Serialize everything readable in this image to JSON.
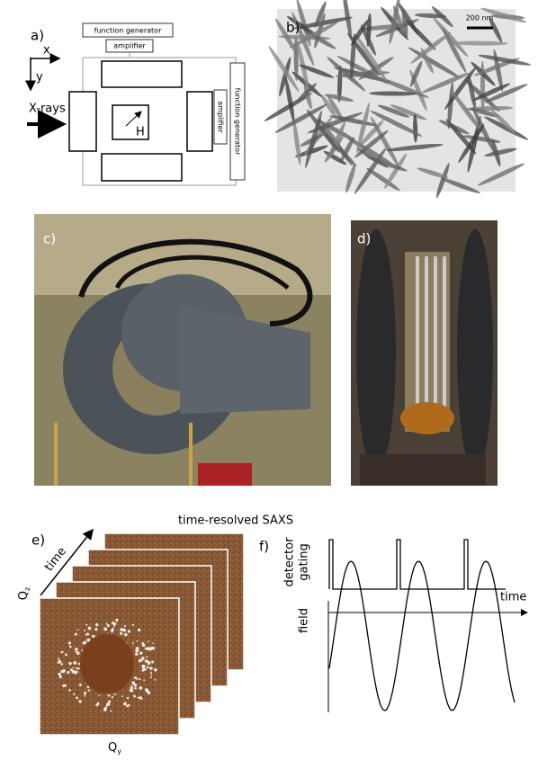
{
  "panel_a": {
    "label": "a)",
    "function_generator_top": "function generator",
    "amplifier_top": "amplifier",
    "axis_x": "x",
    "axis_y": "y",
    "beam": "X-rays",
    "field": "H",
    "amplifier_right": "amplifier",
    "function_generator_right": "function generator"
  },
  "panel_b": {
    "label": "b)",
    "scale_bar": "200 nm"
  },
  "panel_c": {
    "label": "c)"
  },
  "panel_d": {
    "label": "d)"
  },
  "panel_e": {
    "label": "e)",
    "title": "time-resolved SAXS",
    "arrow_label": "time",
    "vertical_axis": {
      "symbol": "Q",
      "subscript": "z"
    },
    "horizontal_axis": {
      "symbol": "Q",
      "subscript": "y"
    }
  },
  "panel_f": {
    "label": "f)",
    "top_label_line1": "detector",
    "top_label_line2": "gating",
    "bottom_label": "field",
    "time_axis": "time"
  }
}
